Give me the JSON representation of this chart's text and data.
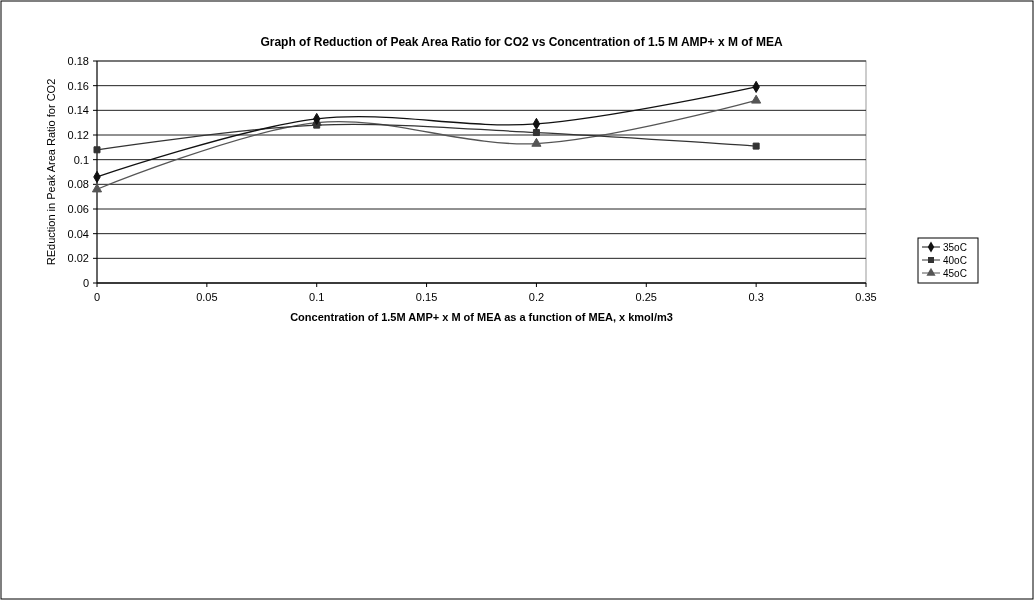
{
  "chart_data": {
    "type": "line",
    "title": "Graph of Reduction of Peak Area Ratio for CO2 vs Concentration of 1.5 M AMP+ x M of MEA",
    "xlabel": "Concentration of 1.5M AMP+ x M of MEA as a function  of MEA, x kmol/m3",
    "ylabel": "REduction in Peak Area Ratio for CO2",
    "x": [
      0,
      0.1,
      0.2,
      0.3
    ],
    "series": [
      {
        "name": "35oC",
        "color": "#111111",
        "marker": "diamond",
        "values": [
          0.086,
          0.133,
          0.129,
          0.159
        ]
      },
      {
        "name": "40oC",
        "color": "#333333",
        "marker": "square",
        "values": [
          0.108,
          0.128,
          0.122,
          0.111
        ]
      },
      {
        "name": "45oC",
        "color": "#555555",
        "marker": "triangle",
        "values": [
          0.076,
          0.13,
          0.113,
          0.148
        ]
      }
    ],
    "xlim": [
      0,
      0.35
    ],
    "xticks": [
      0,
      0.05,
      0.1,
      0.15,
      0.2,
      0.25,
      0.3,
      0.35
    ],
    "ylim": [
      0,
      0.18
    ],
    "yticks": [
      0,
      0.02,
      0.04,
      0.06,
      0.08,
      0.1,
      0.12,
      0.14,
      0.16,
      0.18
    ],
    "grid": "y",
    "legend": "right"
  }
}
